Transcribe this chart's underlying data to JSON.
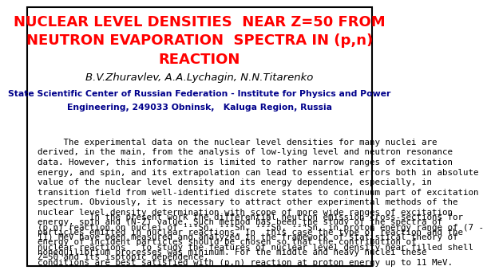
{
  "title_line1": "NUCLEAR LEVEL DENSITIES  NEAR Z=50 FROM",
  "title_line2": "NEUTRON EVAPORATION  SPECTRA IN (p,n)",
  "title_line3": "REACTION",
  "title_color": "#FF0000",
  "title_fontsize": 13.0,
  "authors": "B.V.Zhuravlev, A.A.Lychagin, N.N.Titarenko",
  "authors_fontsize": 9.5,
  "institute_line1": "State Scientific Center of Russian Federation - Institute for Physics and Power",
  "institute_line2": "Engineering, 249033 Obninsk,   Kaluga Region, Russia",
  "institute_color": "#00008B",
  "institute_fontsize": 7.8,
  "body_para1": "     The experimental data on the nuclear level densities for many nuclei are\nderived, in the main, from the analysis of low-lying level and neutron resonance\ndata. However, this information is limited to rather narrow ranges of excitation\nenergy, and spin, and its extrapolation can lead to essential errors both in absolute\nvalue of the nuclear level density and its energy dependence, especially, in\ntransition field from well-identified discrete states to continuum part of excitation\nspectrum. Obviously, it is necessary to attract other experimental methods of the\nnuclear level density determination with scope of more wide ranges of excitation\nenergy, spin and (N-Z) value. Such method has been the study of the spectra of\nparticles emitted in nuclear reactions. In  this case the type of reaction and the\nenergy of incident particles should be chosen so that the contribution of\nnonequilibrium processes was minimum. For the middle and heavy nuclei these\nconditions are best satisfied with (p,n) reaction at proton energy up to 11 MeV.",
  "body_para2": "          In the present work the differential neutron emission cross-sections for\n(p,n) reaction on nuclei of ¹¹⁶Sn, ¹¹⁸Sn, ¹²²Sn, ¹²⁴Sn, in proton energy range of (7 -\n11) MeV have been measured and analyzed in the framework of statistical theory of\nnuclear reactions   to study the features of nuclear level density near filled shell\nZ=50 and its isotopic dependence.",
  "body_fontsize": 7.8,
  "bg_color": "#FFFFFF",
  "border_color": "#000000"
}
